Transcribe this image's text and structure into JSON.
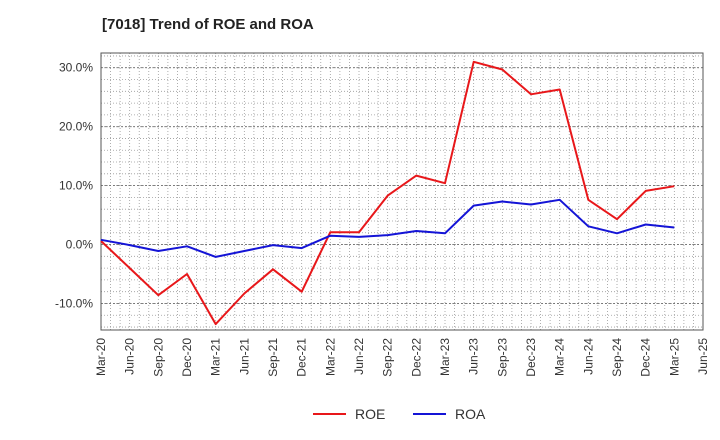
{
  "chart_data": {
    "type": "line",
    "title": "[7018]  Trend of ROE and ROA",
    "xlabel": "",
    "ylabel": "",
    "categories": [
      "Mar-20",
      "Jun-20",
      "Sep-20",
      "Dec-20",
      "Mar-21",
      "Jun-21",
      "Sep-21",
      "Dec-21",
      "Mar-22",
      "Jun-22",
      "Sep-22",
      "Dec-22",
      "Mar-23",
      "Jun-23",
      "Sep-23",
      "Dec-23",
      "Mar-24",
      "Jun-24",
      "Sep-24",
      "Dec-24",
      "Mar-25",
      "Jun-25"
    ],
    "ylim": [
      -14.5,
      32.5
    ],
    "yticks": [
      -10,
      0,
      10,
      20,
      30
    ],
    "ytick_labels": [
      "-10.0%",
      "0.0%",
      "10.0%",
      "20.0%",
      "30.0%"
    ],
    "grid": true,
    "legend_position": "bottom",
    "series": [
      {
        "name": "ROE",
        "color": "#e8171a",
        "values": [
          0.6,
          -4.0,
          -8.6,
          -5.0,
          -13.5,
          -8.3,
          -4.2,
          -8.0,
          2.1,
          2.1,
          8.3,
          11.7,
          10.4,
          31.0,
          29.7,
          25.5,
          26.3,
          7.6,
          4.3,
          9.1,
          9.9,
          null
        ]
      },
      {
        "name": "ROA",
        "color": "#1414d6",
        "values": [
          0.8,
          -0.1,
          -1.1,
          -0.3,
          -2.1,
          -1.1,
          -0.1,
          -0.6,
          1.5,
          1.3,
          1.6,
          2.3,
          1.9,
          6.6,
          7.3,
          6.8,
          7.6,
          3.1,
          1.9,
          3.4,
          2.9,
          null
        ]
      }
    ]
  }
}
